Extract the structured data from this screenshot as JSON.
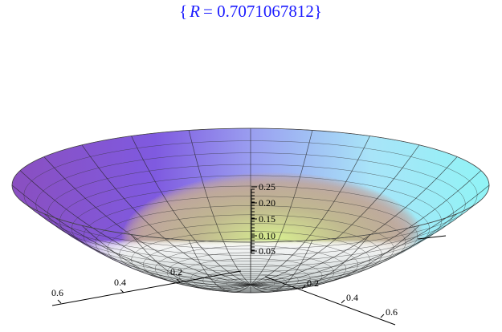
{
  "title": {
    "open": "{",
    "variable": "R",
    "rest": "= 0.7071067812}"
  },
  "z_axis": {
    "ticks": [
      "0.05",
      "0.10",
      "0.15",
      "0.20",
      "0.25"
    ]
  },
  "x_axis": {
    "ticks": [
      "0.2",
      "0.4",
      "0.6"
    ]
  },
  "y_axis": {
    "ticks": [
      "0.2",
      "0.4",
      "0.6"
    ]
  }
}
